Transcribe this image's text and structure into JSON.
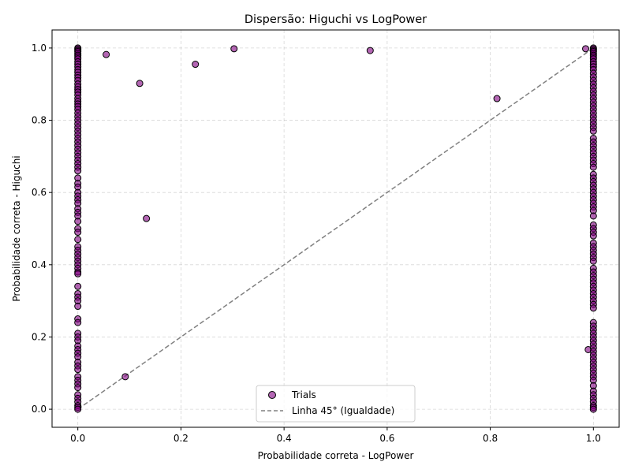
{
  "chart_data": {
    "type": "scatter",
    "title": "Dispersão: Higuchi vs LogPower",
    "xlabel": "Probabilidade correta - LogPower",
    "ylabel": "Probabilidade correta - Higuchi",
    "xlim": [
      -0.05,
      1.05
    ],
    "ylim": [
      -0.05,
      1.05
    ],
    "xticks": [
      0.0,
      0.2,
      0.4,
      0.6,
      0.8,
      1.0
    ],
    "yticks": [
      0.0,
      0.2,
      0.4,
      0.6,
      0.8,
      1.0
    ],
    "xtick_labels": [
      "0.0",
      "0.2",
      "0.4",
      "0.6",
      "0.8",
      "1.0"
    ],
    "ytick_labels": [
      "0.0",
      "0.2",
      "0.4",
      "0.6",
      "0.8",
      "1.0"
    ],
    "grid": true,
    "legend": {
      "placement": "lower-center",
      "entries": [
        {
          "label": "Trials",
          "kind": "marker"
        },
        {
          "label": "Linha 45° (Igualdade)",
          "kind": "dashed-line"
        }
      ]
    },
    "colors": {
      "marker_fill": "#800080",
      "marker_edge": "#000000",
      "reference_line": "#808080"
    },
    "series": [
      {
        "name": "Trials",
        "points": [
          [
            0,
            1.0
          ],
          [
            0,
            0.997
          ],
          [
            0,
            0.993
          ],
          [
            0,
            0.99
          ],
          [
            0,
            0.985
          ],
          [
            0,
            0.98
          ],
          [
            0,
            0.975
          ],
          [
            0,
            0.97
          ],
          [
            0,
            0.962
          ],
          [
            0,
            0.955
          ],
          [
            0,
            0.948
          ],
          [
            0,
            0.94
          ],
          [
            0,
            0.933
          ],
          [
            0,
            0.925
          ],
          [
            0,
            0.918
          ],
          [
            0,
            0.91
          ],
          [
            0,
            0.9
          ],
          [
            0,
            0.892
          ],
          [
            0,
            0.885
          ],
          [
            0,
            0.878
          ],
          [
            0,
            0.87
          ],
          [
            0,
            0.86
          ],
          [
            0,
            0.852
          ],
          [
            0,
            0.845
          ],
          [
            0,
            0.838
          ],
          [
            0,
            0.83
          ],
          [
            0,
            0.82
          ],
          [
            0,
            0.81
          ],
          [
            0,
            0.8
          ],
          [
            0,
            0.79
          ],
          [
            0,
            0.78
          ],
          [
            0,
            0.77
          ],
          [
            0,
            0.76
          ],
          [
            0,
            0.75
          ],
          [
            0,
            0.74
          ],
          [
            0,
            0.73
          ],
          [
            0,
            0.72
          ],
          [
            0,
            0.71
          ],
          [
            0,
            0.7
          ],
          [
            0,
            0.69
          ],
          [
            0,
            0.68
          ],
          [
            0,
            0.67
          ],
          [
            0,
            0.66
          ],
          [
            0,
            0.64
          ],
          [
            0,
            0.625
          ],
          [
            0,
            0.615
          ],
          [
            0,
            0.6
          ],
          [
            0,
            0.59
          ],
          [
            0,
            0.58
          ],
          [
            0,
            0.57
          ],
          [
            0,
            0.555
          ],
          [
            0,
            0.545
          ],
          [
            0,
            0.535
          ],
          [
            0,
            0.52
          ],
          [
            0,
            0.5
          ],
          [
            0,
            0.49
          ],
          [
            0,
            0.47
          ],
          [
            0,
            0.45
          ],
          [
            0,
            0.44
          ],
          [
            0,
            0.43
          ],
          [
            0,
            0.42
          ],
          [
            0,
            0.41
          ],
          [
            0,
            0.4
          ],
          [
            0,
            0.39
          ],
          [
            0,
            0.38
          ],
          [
            0,
            0.375
          ],
          [
            0,
            0.34
          ],
          [
            0,
            0.32
          ],
          [
            0,
            0.31
          ],
          [
            0,
            0.3
          ],
          [
            0,
            0.285
          ],
          [
            0,
            0.25
          ],
          [
            0,
            0.24
          ],
          [
            0,
            0.21
          ],
          [
            0,
            0.2
          ],
          [
            0,
            0.19
          ],
          [
            0,
            0.175
          ],
          [
            0,
            0.165
          ],
          [
            0,
            0.155
          ],
          [
            0,
            0.145
          ],
          [
            0,
            0.13
          ],
          [
            0,
            0.12
          ],
          [
            0,
            0.11
          ],
          [
            0,
            0.09
          ],
          [
            0,
            0.08
          ],
          [
            0,
            0.07
          ],
          [
            0,
            0.06
          ],
          [
            0,
            0.04
          ],
          [
            0,
            0.03
          ],
          [
            0,
            0.02
          ],
          [
            0,
            0.01
          ],
          [
            0,
            0.005
          ],
          [
            0,
            0.0
          ],
          [
            0.055,
            0.982
          ],
          [
            0.12,
            0.902
          ],
          [
            0.228,
            0.955
          ],
          [
            0.303,
            0.998
          ],
          [
            0.567,
            0.993
          ],
          [
            0.813,
            0.86
          ],
          [
            0.133,
            0.528
          ],
          [
            0.092,
            0.09
          ],
          [
            0.985,
            0.998
          ],
          [
            0.99,
            0.165
          ],
          [
            1,
            1.0
          ],
          [
            1,
            0.997
          ],
          [
            1,
            0.993
          ],
          [
            1,
            0.99
          ],
          [
            1,
            0.985
          ],
          [
            1,
            0.98
          ],
          [
            1,
            0.975
          ],
          [
            1,
            0.97
          ],
          [
            1,
            0.962
          ],
          [
            1,
            0.955
          ],
          [
            1,
            0.948
          ],
          [
            1,
            0.94
          ],
          [
            1,
            0.93
          ],
          [
            1,
            0.92
          ],
          [
            1,
            0.91
          ],
          [
            1,
            0.9
          ],
          [
            1,
            0.89
          ],
          [
            1,
            0.88
          ],
          [
            1,
            0.87
          ],
          [
            1,
            0.86
          ],
          [
            1,
            0.85
          ],
          [
            1,
            0.84
          ],
          [
            1,
            0.83
          ],
          [
            1,
            0.82
          ],
          [
            1,
            0.81
          ],
          [
            1,
            0.8
          ],
          [
            1,
            0.79
          ],
          [
            1,
            0.78
          ],
          [
            1,
            0.77
          ],
          [
            1,
            0.75
          ],
          [
            1,
            0.74
          ],
          [
            1,
            0.73
          ],
          [
            1,
            0.72
          ],
          [
            1,
            0.71
          ],
          [
            1,
            0.7
          ],
          [
            1,
            0.69
          ],
          [
            1,
            0.68
          ],
          [
            1,
            0.67
          ],
          [
            1,
            0.65
          ],
          [
            1,
            0.64
          ],
          [
            1,
            0.63
          ],
          [
            1,
            0.62
          ],
          [
            1,
            0.61
          ],
          [
            1,
            0.6
          ],
          [
            1,
            0.59
          ],
          [
            1,
            0.58
          ],
          [
            1,
            0.57
          ],
          [
            1,
            0.56
          ],
          [
            1,
            0.55
          ],
          [
            1,
            0.535
          ],
          [
            1,
            0.51
          ],
          [
            1,
            0.5
          ],
          [
            1,
            0.49
          ],
          [
            1,
            0.48
          ],
          [
            1,
            0.46
          ],
          [
            1,
            0.45
          ],
          [
            1,
            0.44
          ],
          [
            1,
            0.43
          ],
          [
            1,
            0.42
          ],
          [
            1,
            0.41
          ],
          [
            1,
            0.39
          ],
          [
            1,
            0.38
          ],
          [
            1,
            0.37
          ],
          [
            1,
            0.36
          ],
          [
            1,
            0.35
          ],
          [
            1,
            0.34
          ],
          [
            1,
            0.33
          ],
          [
            1,
            0.32
          ],
          [
            1,
            0.31
          ],
          [
            1,
            0.3
          ],
          [
            1,
            0.29
          ],
          [
            1,
            0.28
          ],
          [
            1,
            0.24
          ],
          [
            1,
            0.23
          ],
          [
            1,
            0.22
          ],
          [
            1,
            0.21
          ],
          [
            1,
            0.2
          ],
          [
            1,
            0.19
          ],
          [
            1,
            0.18
          ],
          [
            1,
            0.17
          ],
          [
            1,
            0.16
          ],
          [
            1,
            0.15
          ],
          [
            1,
            0.14
          ],
          [
            1,
            0.13
          ],
          [
            1,
            0.12
          ],
          [
            1,
            0.11
          ],
          [
            1,
            0.1
          ],
          [
            1,
            0.09
          ],
          [
            1,
            0.08
          ],
          [
            1,
            0.065
          ],
          [
            1,
            0.05
          ],
          [
            1,
            0.04
          ],
          [
            1,
            0.03
          ],
          [
            1,
            0.02
          ],
          [
            1,
            0.01
          ],
          [
            1,
            0.005
          ],
          [
            1,
            0.0
          ]
        ]
      }
    ],
    "reference_line": {
      "name": "Linha 45° (Igualdade)",
      "from": [
        0,
        0
      ],
      "to": [
        1,
        1
      ],
      "style": "dashed"
    }
  }
}
